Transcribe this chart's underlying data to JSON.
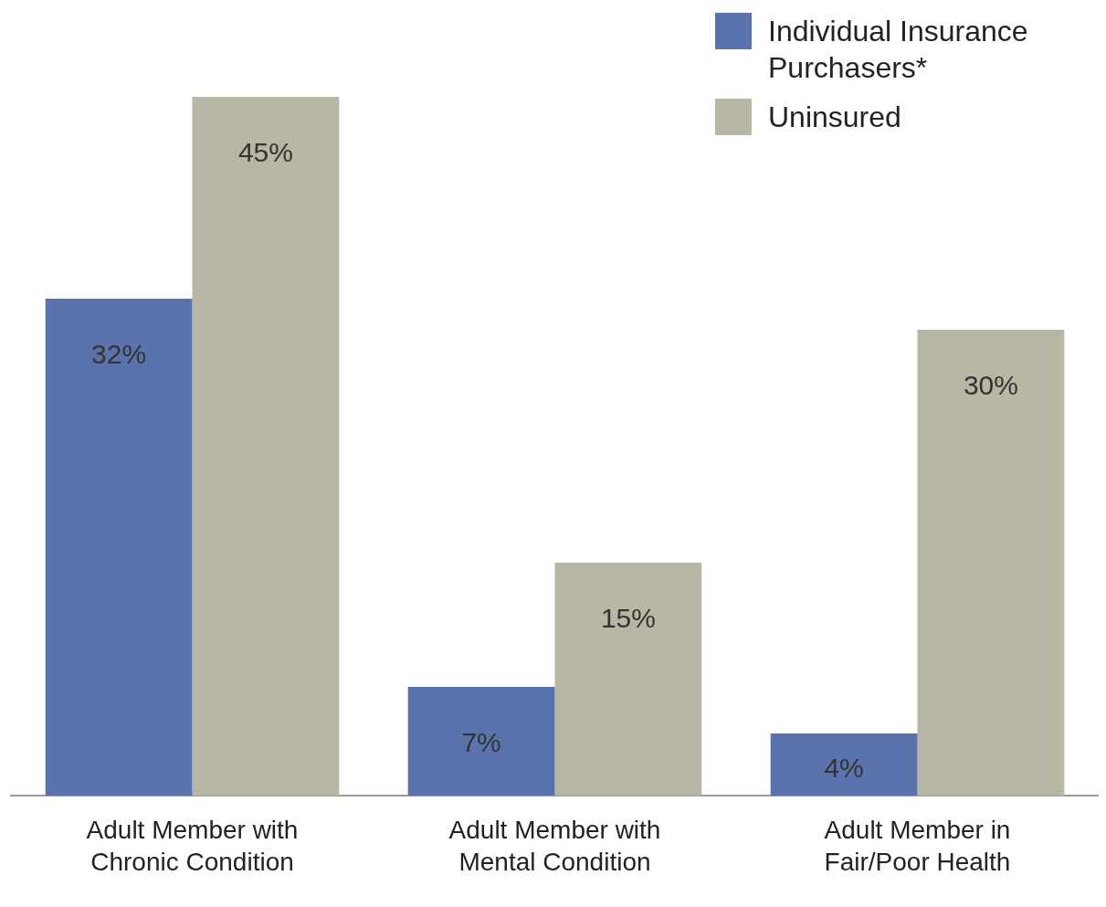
{
  "chart_data": {
    "type": "bar",
    "categories": [
      "Adult Member with Chronic Condition",
      "Adult Member with Mental Condition",
      "Adult Member in Fair/Poor Health"
    ],
    "series": [
      {
        "name": "Individual Insurance Purchasers*",
        "color": "#5b73ad",
        "values": [
          32,
          7,
          4
        ],
        "value_labels": [
          "32%",
          "7%",
          "4%"
        ]
      },
      {
        "name": "Uninsured",
        "color": "#b8b6a4",
        "values": [
          45,
          15,
          30
        ],
        "value_labels": [
          "45%",
          "15%",
          "30%"
        ]
      }
    ],
    "ylim": [
      0,
      45
    ],
    "tick_labels": "x",
    "grid": false,
    "legend": "top right"
  }
}
